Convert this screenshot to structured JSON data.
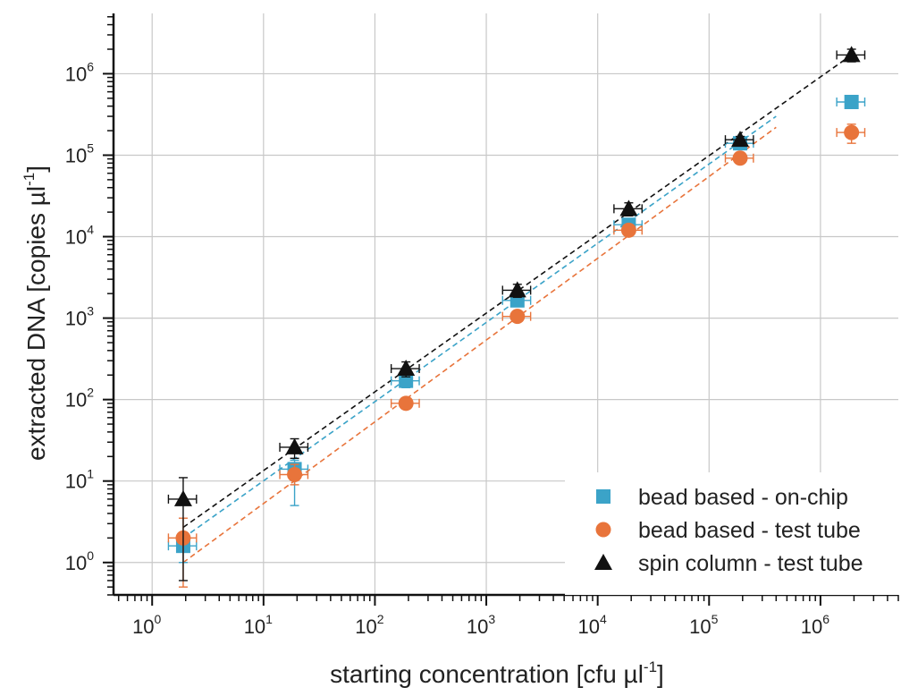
{
  "chart_data": {
    "type": "scatter",
    "xlabel": {
      "pre": "starting concentration [cfu µl",
      "sup": "-1",
      "post": "]"
    },
    "ylabel": {
      "pre": "extracted DNA [copies µl",
      "sup": "-1",
      "post": "]"
    },
    "xscale": "log",
    "yscale": "log",
    "xlim": [
      0.45,
      5000000
    ],
    "ylim": [
      0.4,
      5500000
    ],
    "grid": true,
    "legend_position": "bottom-right",
    "x_ticks": [
      {
        "base": "10",
        "exp": "0",
        "value": 1
      },
      {
        "base": "10",
        "exp": "1",
        "value": 10
      },
      {
        "base": "10",
        "exp": "2",
        "value": 100
      },
      {
        "base": "10",
        "exp": "3",
        "value": 1000
      },
      {
        "base": "10",
        "exp": "4",
        "value": 10000
      },
      {
        "base": "10",
        "exp": "5",
        "value": 100000
      },
      {
        "base": "10",
        "exp": "6",
        "value": 1000000
      }
    ],
    "y_ticks": [
      {
        "base": "10",
        "exp": "0",
        "value": 1
      },
      {
        "base": "10",
        "exp": "1",
        "value": 10
      },
      {
        "base": "10",
        "exp": "2",
        "value": 100
      },
      {
        "base": "10",
        "exp": "3",
        "value": 1000
      },
      {
        "base": "10",
        "exp": "4",
        "value": 10000
      },
      {
        "base": "10",
        "exp": "5",
        "value": 100000
      },
      {
        "base": "10",
        "exp": "6",
        "value": 1000000
      }
    ],
    "series": [
      {
        "name": "bead based - on-chip",
        "marker": "square",
        "color": "#3ba3c8",
        "points": [
          {
            "x": 1.9,
            "y": 1.6,
            "ylo": 1.0,
            "yhi": 2.2,
            "xlo": 1.4,
            "xhi": 2.5
          },
          {
            "x": 19,
            "y": 14,
            "ylo": 5,
            "yhi": 18,
            "xlo": 14,
            "xhi": 25
          },
          {
            "x": 190,
            "y": 170,
            "ylo": 140,
            "yhi": 210,
            "xlo": 140,
            "xhi": 250
          },
          {
            "x": 1900,
            "y": 1650,
            "ylo": 1400,
            "yhi": 1900,
            "xlo": 1400,
            "xhi": 2500
          },
          {
            "x": 19000,
            "y": 14000,
            "ylo": 12000,
            "yhi": 16000,
            "xlo": 14000,
            "xhi": 25000
          },
          {
            "x": 190000,
            "y": 140000,
            "ylo": 120000,
            "yhi": 160000,
            "xlo": 140000,
            "xhi": 250000
          },
          {
            "x": 1900000,
            "y": 450000,
            "ylo": 410000,
            "yhi": 500000,
            "xlo": 1400000,
            "xhi": 2500000
          }
        ],
        "fit": {
          "x": [
            1.9,
            400000
          ],
          "y": [
            2.0,
            300000
          ]
        }
      },
      {
        "name": "bead based - test tube",
        "marker": "circle",
        "color": "#e8743b",
        "points": [
          {
            "x": 1.9,
            "y": 2.0,
            "ylo": 0.5,
            "yhi": 3.5,
            "xlo": 1.4,
            "xhi": 2.5
          },
          {
            "x": 19,
            "y": 12,
            "ylo": 9,
            "yhi": 16,
            "xlo": 14,
            "xhi": 25
          },
          {
            "x": 190,
            "y": 90,
            "ylo": 80,
            "yhi": 100,
            "xlo": 140,
            "xhi": 250
          },
          {
            "x": 1900,
            "y": 1050,
            "ylo": 950,
            "yhi": 1150,
            "xlo": 1400,
            "xhi": 2500
          },
          {
            "x": 19000,
            "y": 12000,
            "ylo": 10500,
            "yhi": 13500,
            "xlo": 14000,
            "xhi": 25000
          },
          {
            "x": 190000,
            "y": 92000,
            "ylo": 82000,
            "yhi": 100000,
            "xlo": 140000,
            "xhi": 250000
          },
          {
            "x": 1900000,
            "y": 190000,
            "ylo": 140000,
            "yhi": 240000,
            "xlo": 1400000,
            "xhi": 2500000
          }
        ],
        "fit": {
          "x": [
            1.9,
            400000
          ],
          "y": [
            1.0,
            220000
          ]
        }
      },
      {
        "name": "spin column - test tube",
        "marker": "triangle",
        "color": "#111111",
        "points": [
          {
            "x": 1.9,
            "y": 6,
            "ylo": 0.6,
            "yhi": 11,
            "xlo": 1.4,
            "xhi": 2.5
          },
          {
            "x": 19,
            "y": 26,
            "ylo": 19,
            "yhi": 33,
            "xlo": 14,
            "xhi": 25
          },
          {
            "x": 190,
            "y": 240,
            "ylo": 190,
            "yhi": 290,
            "xlo": 140,
            "xhi": 250
          },
          {
            "x": 1900,
            "y": 2200,
            "ylo": 1800,
            "yhi": 2600,
            "xlo": 1400,
            "xhi": 2500
          },
          {
            "x": 19000,
            "y": 22000,
            "ylo": 18000,
            "yhi": 26000,
            "xlo": 14000,
            "xhi": 25000
          },
          {
            "x": 190000,
            "y": 155000,
            "ylo": 140000,
            "yhi": 170000,
            "xlo": 140000,
            "xhi": 250000
          },
          {
            "x": 1900000,
            "y": 1700000,
            "ylo": 1400000,
            "yhi": 2000000,
            "xlo": 1400000,
            "xhi": 2500000
          }
        ],
        "fit": {
          "x": [
            1.9,
            1900000
          ],
          "y": [
            2.7,
            1700000
          ]
        }
      }
    ]
  }
}
